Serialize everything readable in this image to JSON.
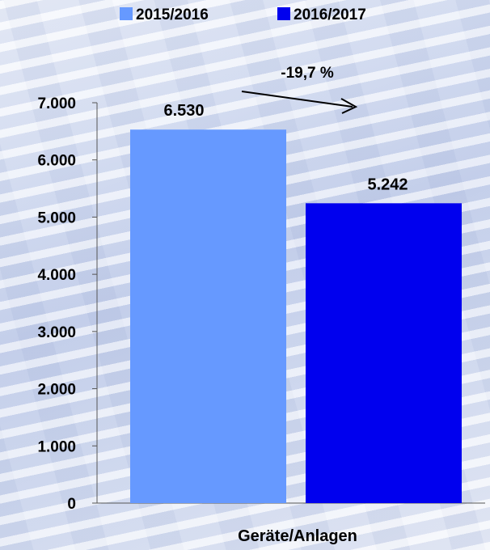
{
  "chart_data": {
    "type": "bar",
    "categories": [
      "Geräte/Anlagen"
    ],
    "series": [
      {
        "name": "2015/2016",
        "values": [
          6530
        ],
        "color": "#6699ff",
        "label": "6.530"
      },
      {
        "name": "2016/2017",
        "values": [
          5242
        ],
        "color": "#0000ee",
        "label": "5.242"
      }
    ],
    "xlabel": "Geräte/Anlagen",
    "ylabel": "",
    "ylim": [
      0,
      7000
    ],
    "yticks": [
      {
        "value": 0,
        "label": "0"
      },
      {
        "value": 1000,
        "label": "1.000"
      },
      {
        "value": 2000,
        "label": "2.000"
      },
      {
        "value": 3000,
        "label": "3.000"
      },
      {
        "value": 4000,
        "label": "4.000"
      },
      {
        "value": 5000,
        "label": "5.000"
      },
      {
        "value": 6000,
        "label": "6.000"
      },
      {
        "value": 7000,
        "label": "7.000"
      }
    ],
    "annotation": "-19,7 %",
    "legend_position": "top",
    "grid": false
  }
}
